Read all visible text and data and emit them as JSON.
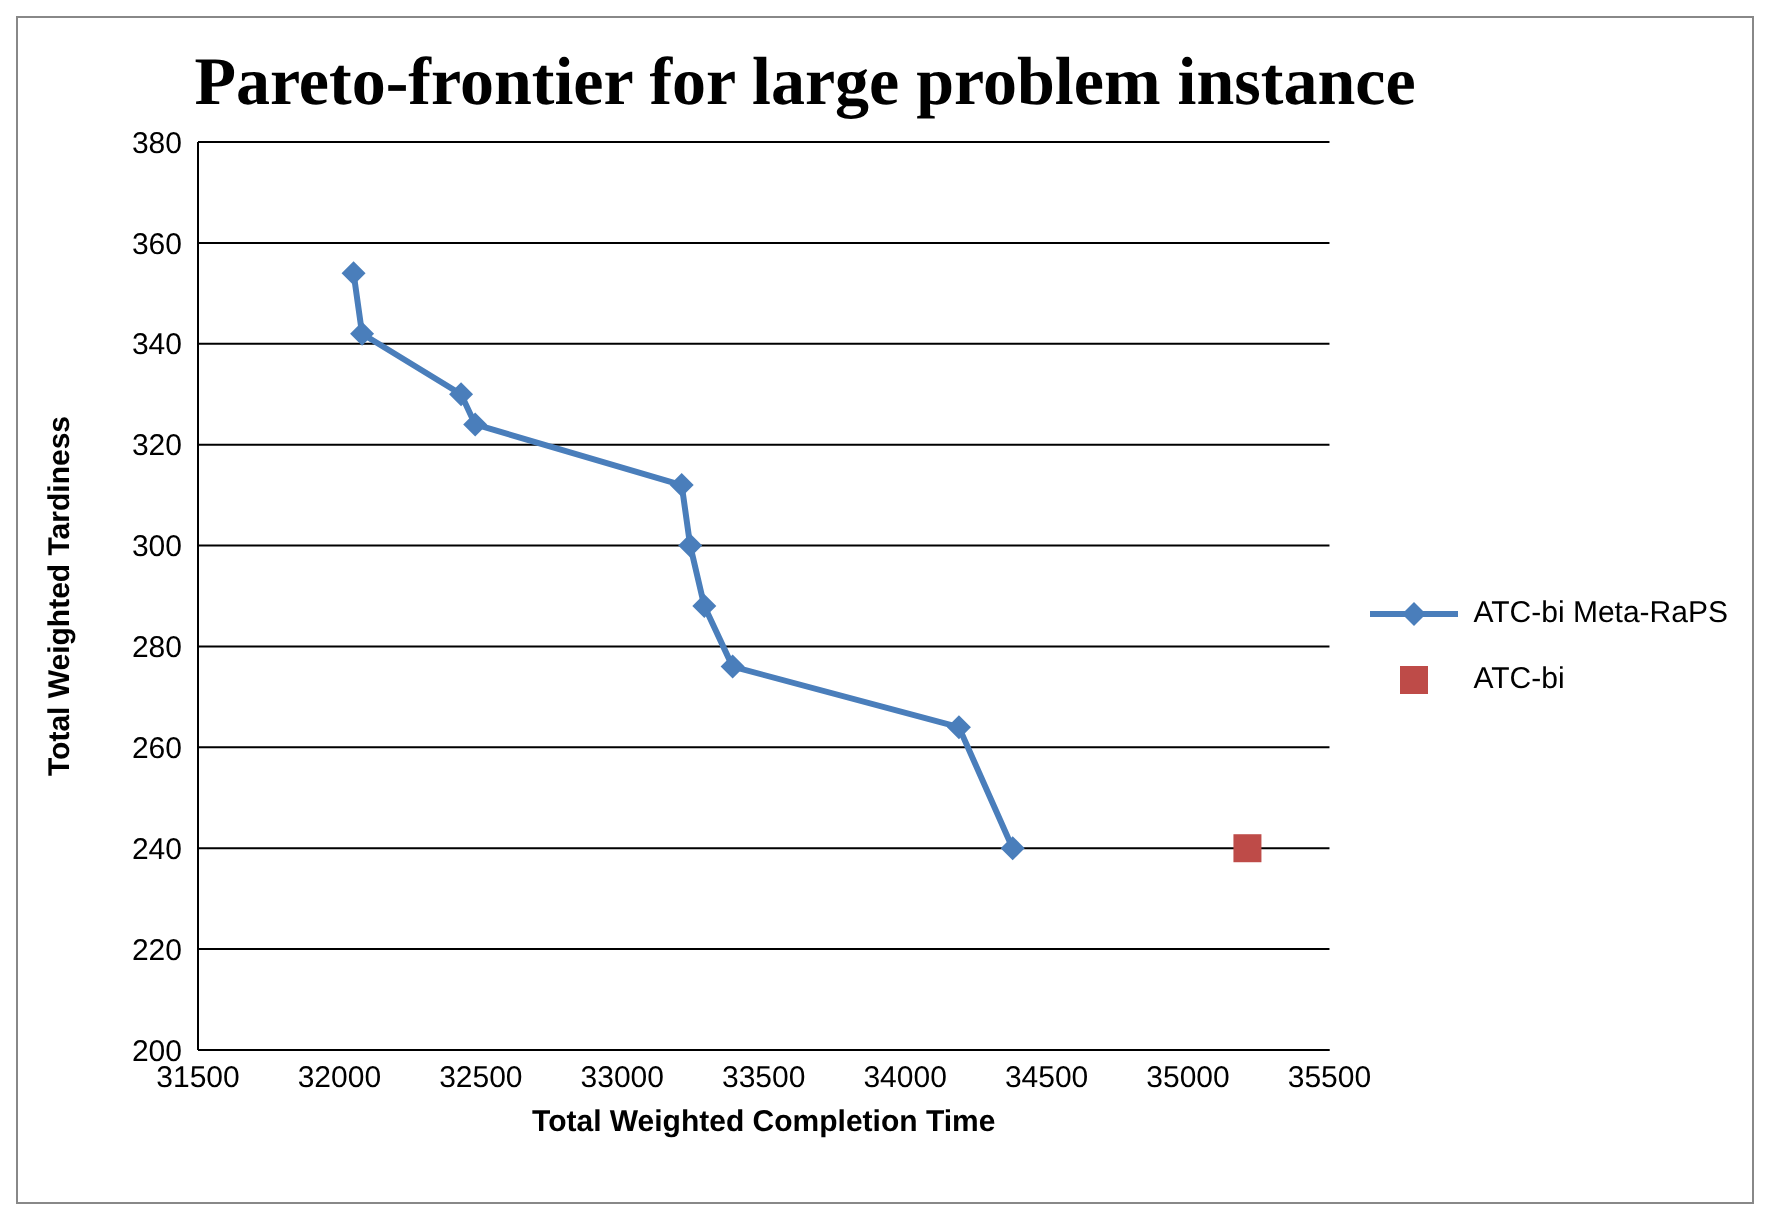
{
  "chart_data": {
    "type": "line",
    "title": "Pareto-frontier for large problem instance",
    "xlabel": "Total Weighted Completion Time",
    "ylabel": "Total Weighted Tardiness",
    "series": [
      {
        "name": "ATC-bi Meta-RaPS",
        "type": "line",
        "marker": "diamond",
        "color": "#4a7ebb",
        "x": [
          32050,
          32080,
          32430,
          32480,
          33210,
          33240,
          33290,
          33390,
          34190,
          34380
        ],
        "values": [
          354,
          342,
          330,
          324,
          312,
          300,
          288,
          276,
          264,
          240
        ]
      },
      {
        "name": "ATC-bi",
        "type": "scatter",
        "marker": "square",
        "color": "#be4b48",
        "x": [
          35210
        ],
        "values": [
          240
        ]
      }
    ],
    "xlim": [
      31500,
      35500
    ],
    "xticks": [
      31500,
      32000,
      32500,
      33000,
      33500,
      34000,
      34500,
      35000,
      35500
    ],
    "ylim": [
      200,
      380
    ],
    "yticks": [
      200,
      220,
      240,
      260,
      280,
      300,
      320,
      340,
      360,
      380
    ],
    "grid": "y",
    "legend": "right"
  }
}
